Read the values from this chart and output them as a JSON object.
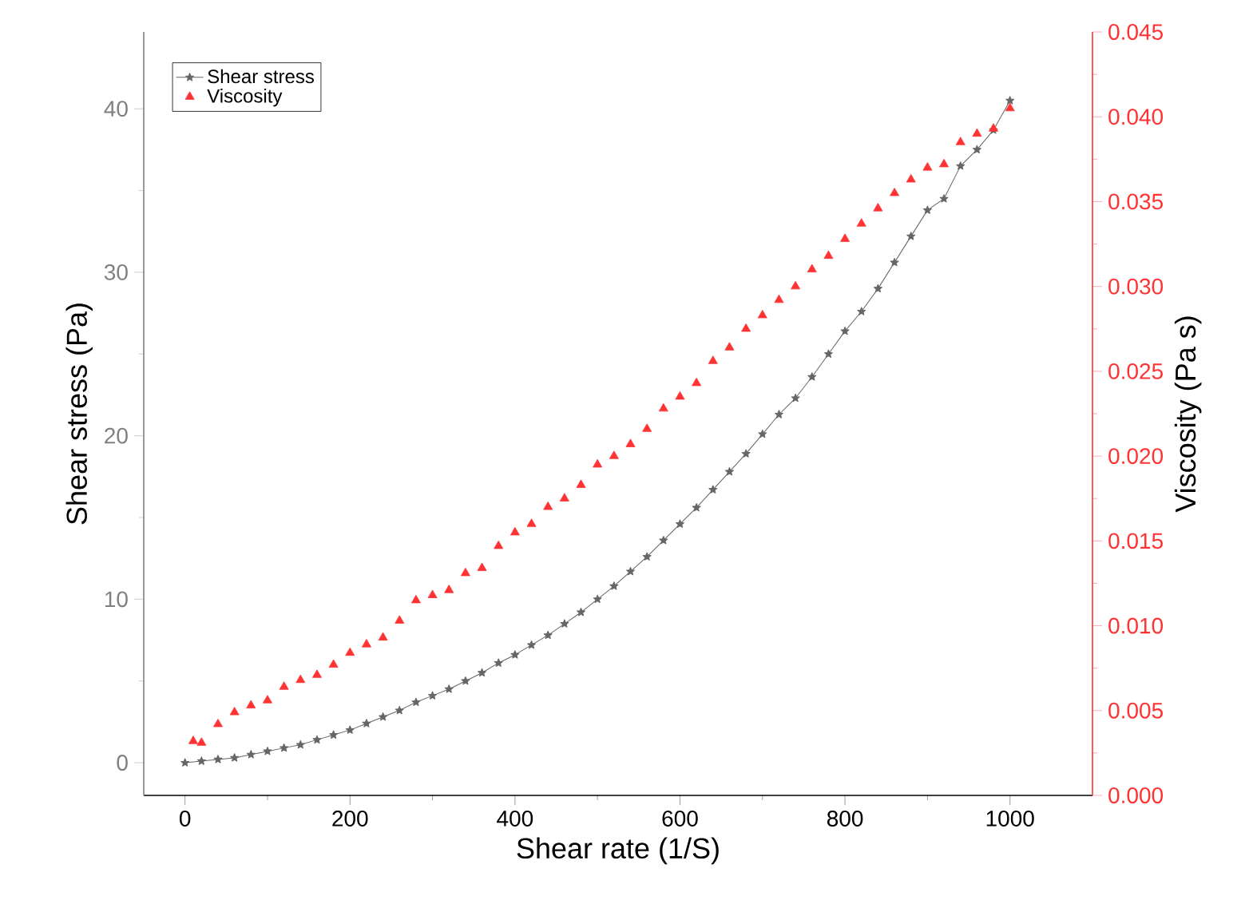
{
  "chart_data": {
    "type": "line",
    "xlabel": "Shear rate (1/S)",
    "ylabel": "Shear stress (Pa)",
    "y2label": "Viscosity (Pa s)",
    "xlim": [
      -50,
      1100
    ],
    "xticks": [
      0,
      200,
      400,
      600,
      800,
      1000
    ],
    "ylim": [
      -2,
      44.7
    ],
    "yticks": [
      0,
      10,
      20,
      30,
      40
    ],
    "y2lim": [
      0,
      0.045
    ],
    "y2ticks": [
      {
        "value": 0,
        "label": "0.000"
      },
      {
        "value": 0.005,
        "label": "0.005"
      },
      {
        "value": 0.01,
        "label": "0.010"
      },
      {
        "value": 0.015,
        "label": "0.015"
      },
      {
        "value": 0.02,
        "label": "0.020"
      },
      {
        "value": 0.025,
        "label": "0.025"
      },
      {
        "value": 0.03,
        "label": "0.030"
      },
      {
        "value": 0.035,
        "label": "0.035"
      },
      {
        "value": 0.04,
        "label": "0.040"
      },
      {
        "value": 0.045,
        "label": "0.045"
      }
    ],
    "legend": "top left",
    "grid": false,
    "series": [
      {
        "name": "Shear stress",
        "marker": "star",
        "line_style": "solid",
        "color": "#666666",
        "x": [
          0,
          20,
          40,
          60,
          80,
          100,
          120,
          140,
          160,
          180,
          200,
          220,
          240,
          260,
          280,
          300,
          320,
          340,
          360,
          380,
          400,
          420,
          440,
          460,
          480,
          500,
          520,
          540,
          560,
          580,
          600,
          620,
          640,
          660,
          680,
          700,
          720,
          740,
          760,
          780,
          800,
          820,
          840,
          860,
          880,
          900,
          920,
          940,
          960,
          980,
          1000
        ],
        "values": [
          0,
          0.1,
          0.2,
          0.3,
          0.5,
          0.7,
          0.9,
          1.1,
          1.4,
          1.7,
          2.0,
          2.4,
          2.8,
          3.2,
          3.7,
          4.1,
          4.5,
          5.0,
          5.5,
          6.1,
          6.6,
          7.2,
          7.8,
          8.5,
          9.2,
          10.0,
          10.8,
          11.7,
          12.6,
          13.6,
          14.6,
          15.6,
          16.7,
          17.8,
          18.9,
          20.1,
          21.3,
          22.3,
          23.6,
          25.0,
          26.4,
          27.6,
          29.0,
          30.6,
          32.2,
          33.8,
          34.5,
          36.5,
          37.5,
          38.7,
          40.5
        ]
      },
      {
        "name": "Viscosity",
        "type": "scatter",
        "marker": "triangle",
        "axis": "y2",
        "color": "#ff3333",
        "x": [
          10,
          20,
          40,
          60,
          80,
          100,
          120,
          140,
          160,
          180,
          200,
          220,
          240,
          260,
          280,
          300,
          320,
          340,
          360,
          380,
          400,
          420,
          440,
          460,
          480,
          500,
          520,
          540,
          560,
          580,
          600,
          620,
          640,
          660,
          680,
          700,
          720,
          740,
          760,
          780,
          800,
          820,
          840,
          860,
          880,
          900,
          920,
          940,
          960,
          980,
          1000
        ],
        "values": [
          0.0032,
          0.0031,
          0.0042,
          0.0049,
          0.0053,
          0.0056,
          0.0064,
          0.0068,
          0.0071,
          0.0077,
          0.0084,
          0.0089,
          0.0093,
          0.0103,
          0.0115,
          0.0118,
          0.0121,
          0.0131,
          0.0134,
          0.0147,
          0.0155,
          0.016,
          0.017,
          0.0175,
          0.0183,
          0.0195,
          0.02,
          0.0207,
          0.0216,
          0.0228,
          0.0235,
          0.0243,
          0.0256,
          0.0264,
          0.0275,
          0.0283,
          0.0292,
          0.03,
          0.031,
          0.0318,
          0.0328,
          0.0337,
          0.0346,
          0.0355,
          0.0363,
          0.037,
          0.0372,
          0.0385,
          0.039,
          0.0393,
          0.0405
        ]
      }
    ]
  }
}
